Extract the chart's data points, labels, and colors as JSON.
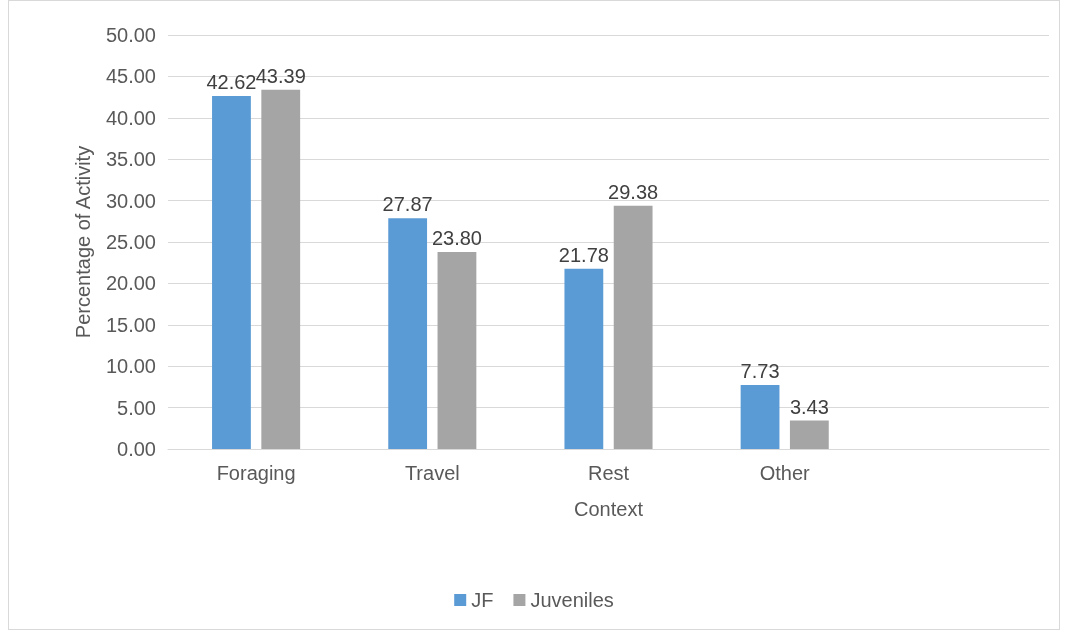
{
  "chart_data": {
    "type": "bar",
    "xlabel": "Context",
    "ylabel": "Percentage of Activity",
    "categories": [
      "Foraging",
      "Travel",
      "Rest",
      "Other",
      null
    ],
    "series": [
      {
        "name": "JF",
        "color": "#5b9bd5",
        "values": [
          42.62,
          27.87,
          21.78,
          7.73,
          null
        ],
        "value_labels": [
          "42.62",
          "27.87",
          "21.78",
          "7.73",
          null
        ]
      },
      {
        "name": "Juveniles",
        "color": "#a5a5a5",
        "values": [
          43.39,
          23.8,
          29.38,
          3.43,
          null
        ],
        "value_labels": [
          "43.39",
          "23.80",
          "29.38",
          "3.43",
          null
        ]
      }
    ],
    "ylim": [
      0,
      50
    ],
    "yticks": [
      {
        "value": 0,
        "label": "0.00"
      },
      {
        "value": 5,
        "label": "5.00"
      },
      {
        "value": 10,
        "label": "10.00"
      },
      {
        "value": 15,
        "label": "15.00"
      },
      {
        "value": 20,
        "label": "20.00"
      },
      {
        "value": 25,
        "label": "25.00"
      },
      {
        "value": 30,
        "label": "30.00"
      },
      {
        "value": 35,
        "label": "35.00"
      },
      {
        "value": 40,
        "label": "40.00"
      },
      {
        "value": 45,
        "label": "45.00"
      },
      {
        "value": 50,
        "label": "50.00"
      }
    ],
    "grid": "y",
    "legend": "bottom"
  }
}
